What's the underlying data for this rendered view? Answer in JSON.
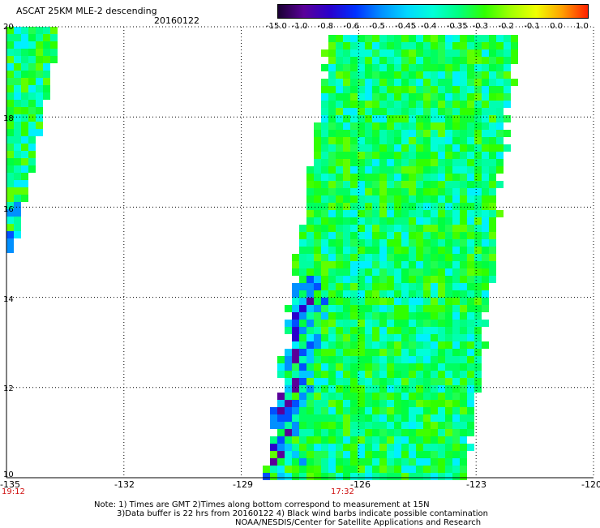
{
  "header": {
    "title": "ASCAT 25KM MLE-2 descending",
    "date": "20160122"
  },
  "colorbar": {
    "labels": [
      "-15.0",
      "-1.0",
      "-0.8",
      "-0.6",
      "-0.5",
      "-0.45",
      "-0.4",
      "-0.35",
      "-0.3",
      "-0.2",
      "-0.1",
      "0.0",
      "1.0"
    ],
    "colors": [
      "#1a0033",
      "#5a0099",
      "#2a00cc",
      "#0030ff",
      "#0090ff",
      "#00d8ff",
      "#00ffd8",
      "#00ff80",
      "#30ff00",
      "#a0ff00",
      "#f0ff00",
      "#ffa000",
      "#ff2000"
    ]
  },
  "axes": {
    "x_ticks": [
      "-135",
      "-132",
      "-129",
      "-126",
      "-123",
      "-120"
    ],
    "y_ticks": [
      "20",
      "18",
      "16",
      "14",
      "12",
      "10"
    ],
    "x_range": [
      -135,
      -120
    ],
    "y_range": [
      10,
      20
    ],
    "grid": true
  },
  "times": {
    "left": "19:12",
    "right": "17:32"
  },
  "notes": [
    "Note: 1) Times are GMT 2)Times along bottom correspond to measurement at 15N",
    "3)Data buffer is 22 hrs from 20160122 4) Black wind barbs indicate possible contamination",
    "NOAA/NESDIS/Center for Satellite Applications and Research"
  ],
  "swaths": [
    {
      "name": "left-swath",
      "lon_west": -135,
      "lat_top": 20,
      "edge_lons": [
        -133.7,
        -134.2,
        -134.5,
        -134.6,
        -134.8,
        -134.9
      ]
    },
    {
      "name": "main-swath",
      "lat_top": 20,
      "lat_bottom": 10,
      "west_lons": [
        -126.6,
        -127.0,
        -127.3,
        -127.7,
        -128.0,
        -128.3
      ],
      "east_lons": [
        -122.0,
        -122.3,
        -122.6,
        -122.9,
        -123.2,
        -123.3
      ]
    }
  ],
  "chart_data": {
    "type": "heatmap",
    "title": "ASCAT 25KM MLE-2 descending",
    "xlabel": "",
    "ylabel": "",
    "xlim": [
      -135,
      -120
    ],
    "ylim": [
      10,
      20
    ],
    "grid": true,
    "legend_placement": "top-right colorbar"
  }
}
